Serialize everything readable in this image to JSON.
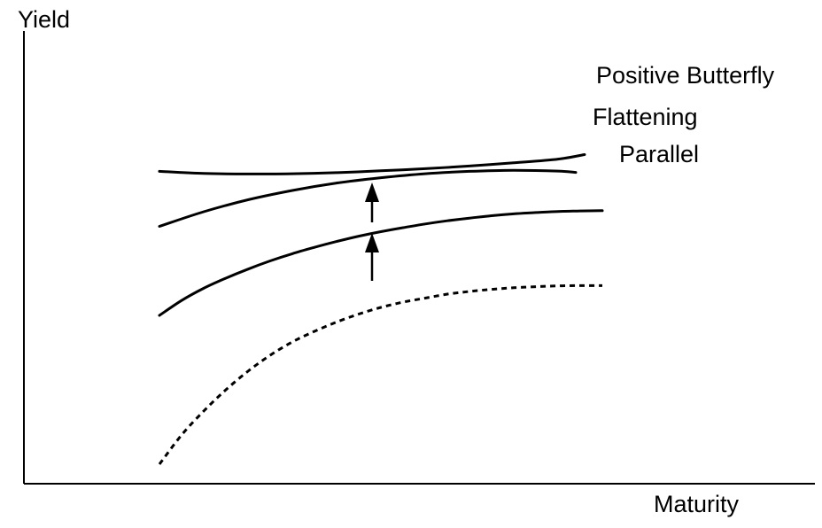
{
  "chart_data": {
    "type": "line",
    "title": "",
    "xlabel": "Maturity",
    "ylabel": "Yield",
    "grid": false,
    "legend": "none",
    "series": [
      {
        "name": "",
        "style": "dashed",
        "x": [
          0.0,
          0.05,
          0.1,
          0.15,
          0.2,
          0.25,
          0.3,
          0.35,
          0.4,
          0.45,
          0.5,
          0.55,
          0.6,
          0.65,
          0.7,
          0.75,
          0.8,
          0.85,
          0.9,
          0.95,
          1.0
        ],
        "y": [
          0.06,
          0.17,
          0.26,
          0.34,
          0.41,
          0.47,
          0.52,
          0.56,
          0.595,
          0.625,
          0.65,
          0.67,
          0.685,
          0.7,
          0.71,
          0.718,
          0.724,
          0.728,
          0.731,
          0.732,
          0.732
        ]
      },
      {
        "name": "Parallel",
        "style": "solid",
        "x": [
          0.0,
          0.05,
          0.1,
          0.15,
          0.2,
          0.25,
          0.3,
          0.35,
          0.4,
          0.45,
          0.5,
          0.55,
          0.6,
          0.65,
          0.7,
          0.75,
          0.8,
          0.85,
          0.9,
          0.95,
          1.0
        ],
        "y": [
          0.62,
          0.676,
          0.722,
          0.76,
          0.794,
          0.825,
          0.852,
          0.876,
          0.898,
          0.918,
          0.935,
          0.95,
          0.964,
          0.976,
          0.986,
          0.995,
          1.002,
          1.007,
          1.011,
          1.013,
          1.014
        ]
      },
      {
        "name": "Flattening",
        "style": "solid",
        "x": [
          0.0,
          0.1,
          0.2,
          0.3,
          0.4,
          0.5,
          0.6,
          0.7,
          0.8,
          0.9,
          0.94
        ],
        "y": [
          0.955,
          1.01,
          1.055,
          1.09,
          1.118,
          1.138,
          1.153,
          1.162,
          1.166,
          1.163,
          1.158
        ]
      },
      {
        "name": "Positive Butterfly",
        "style": "solid",
        "x": [
          0.0,
          0.1,
          0.2,
          0.3,
          0.4,
          0.5,
          0.6,
          0.7,
          0.8,
          0.9,
          0.96
        ],
        "y": [
          1.162,
          1.154,
          1.152,
          1.153,
          1.157,
          1.164,
          1.172,
          1.182,
          1.194,
          1.208,
          1.225
        ]
      }
    ],
    "arrows": [
      {
        "x": 0.48,
        "from": 0.75,
        "to": 0.93
      },
      {
        "x": 0.48,
        "from": 0.97,
        "to": 1.12
      }
    ]
  }
}
